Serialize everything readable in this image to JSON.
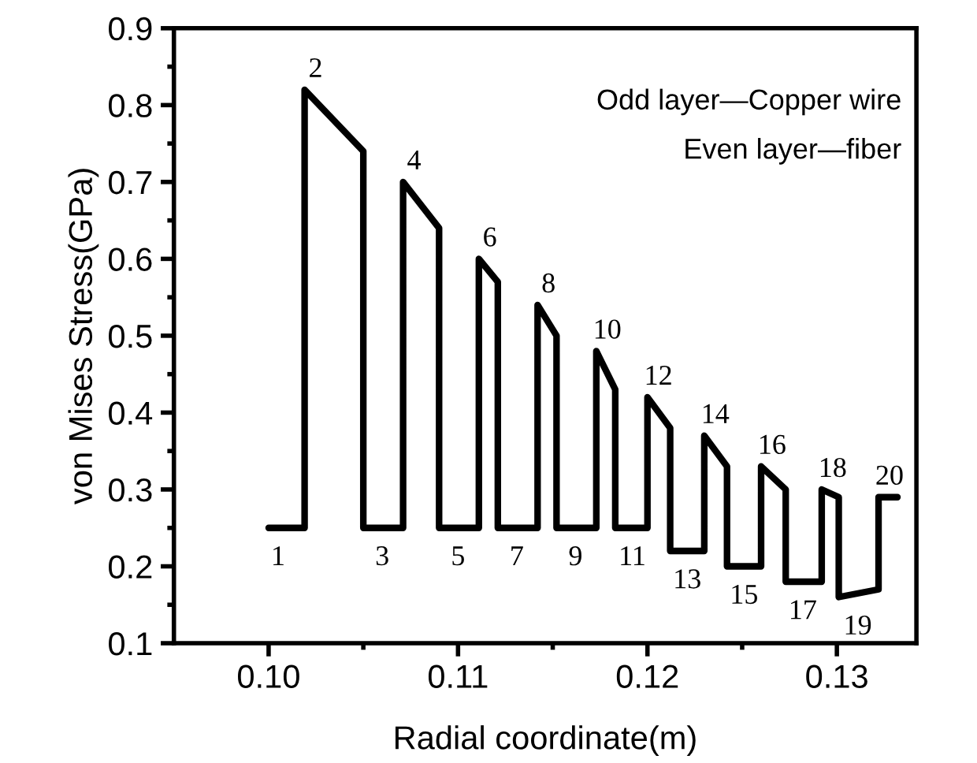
{
  "chart_data": {
    "type": "line",
    "xlabel": "Radial coordinate(m)",
    "ylabel": "von Mises Stress(GPa)",
    "xlim": [
      0.095,
      0.1342
    ],
    "ylim": [
      0.1,
      0.9
    ],
    "xticks": [
      {
        "value": 0.1,
        "label": "0.10"
      },
      {
        "value": 0.105,
        "label": null
      },
      {
        "value": 0.11,
        "label": "0.11"
      },
      {
        "value": 0.115,
        "label": null
      },
      {
        "value": 0.12,
        "label": "0.12"
      },
      {
        "value": 0.125,
        "label": null
      },
      {
        "value": 0.13,
        "label": "0.13"
      }
    ],
    "yticks": [
      0.1,
      {
        "value": 0.15,
        "label": null
      },
      0.2,
      {
        "value": 0.25,
        "label": null
      },
      0.3,
      {
        "value": 0.35,
        "label": null
      },
      0.4,
      {
        "value": 0.45,
        "label": null
      },
      0.5,
      {
        "value": 0.55,
        "label": null
      },
      0.6,
      {
        "value": 0.65,
        "label": null
      },
      0.7,
      {
        "value": 0.75,
        "label": null
      },
      0.8,
      {
        "value": 0.85,
        "label": null
      },
      0.9
    ],
    "grid": false,
    "legend": false,
    "marker": "none",
    "line_style": "solid",
    "series": [
      {
        "color": "#000000",
        "x": [
          0.1,
          0.1019,
          0.1019,
          0.105,
          0.105,
          0.1071,
          0.1071,
          0.109,
          0.109,
          0.1111,
          0.1111,
          0.1121,
          0.1121,
          0.1142,
          0.1142,
          0.1152,
          0.1152,
          0.1173,
          0.1173,
          0.1183,
          0.1183,
          0.12,
          0.12,
          0.1212,
          0.1212,
          0.123,
          0.123,
          0.1242,
          0.1242,
          0.126,
          0.126,
          0.1273,
          0.1273,
          0.1292,
          0.1292,
          0.1301,
          0.1301,
          0.1322,
          0.1322,
          0.1332
        ],
        "values": [
          0.25,
          0.25,
          0.82,
          0.74,
          0.25,
          0.25,
          0.7,
          0.64,
          0.25,
          0.25,
          0.6,
          0.57,
          0.25,
          0.25,
          0.54,
          0.5,
          0.25,
          0.25,
          0.48,
          0.43,
          0.25,
          0.25,
          0.42,
          0.38,
          0.22,
          0.22,
          0.37,
          0.33,
          0.2,
          0.2,
          0.33,
          0.3,
          0.18,
          0.18,
          0.3,
          0.29,
          0.16,
          0.17,
          0.29,
          0.29
        ]
      }
    ],
    "annotations": [
      {
        "text": "1",
        "x": 0.1005,
        "y": 0.25
      },
      {
        "text": "2",
        "x": 0.1019,
        "y": 0.82
      },
      {
        "text": "3",
        "x": 0.106,
        "y": 0.25
      },
      {
        "text": "4",
        "x": 0.1071,
        "y": 0.7
      },
      {
        "text": "5",
        "x": 0.11,
        "y": 0.25
      },
      {
        "text": "6",
        "x": 0.1111,
        "y": 0.6
      },
      {
        "text": "7",
        "x": 0.1131,
        "y": 0.25
      },
      {
        "text": "8",
        "x": 0.1142,
        "y": 0.54
      },
      {
        "text": "9",
        "x": 0.1162,
        "y": 0.25
      },
      {
        "text": "10",
        "x": 0.1173,
        "y": 0.48
      },
      {
        "text": "11",
        "x": 0.1192,
        "y": 0.25
      },
      {
        "text": "12",
        "x": 0.12,
        "y": 0.42
      },
      {
        "text": "13",
        "x": 0.1221,
        "y": 0.22
      },
      {
        "text": "14",
        "x": 0.123,
        "y": 0.37
      },
      {
        "text": "15",
        "x": 0.1251,
        "y": 0.2
      },
      {
        "text": "16",
        "x": 0.126,
        "y": 0.33
      },
      {
        "text": "17",
        "x": 0.1282,
        "y": 0.18
      },
      {
        "text": "18",
        "x": 0.1292,
        "y": 0.3
      },
      {
        "text": "19",
        "x": 0.1311,
        "y": 0.16
      },
      {
        "text": "20",
        "x": 0.1322,
        "y": 0.29
      },
      "Odd layer—Copper wire",
      "Even layer—fiber"
    ]
  }
}
